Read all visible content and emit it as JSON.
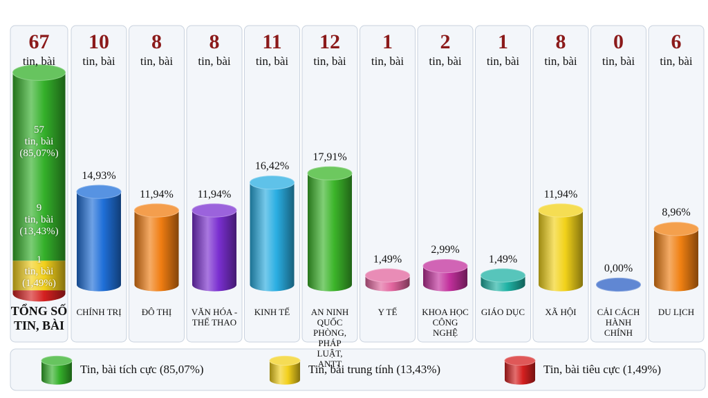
{
  "chart_data": {
    "type": "bar",
    "unit": "tin, bài",
    "total": {
      "label": "TỔNG SỐ TIN, BÀI",
      "value": 67,
      "series": [
        {
          "name": "Tin, bài tích cực (85,07%)",
          "color": "#34b02a",
          "values": [
            57
          ],
          "percents": [
            85.07
          ],
          "percent_labels": [
            "(85,07%)"
          ]
        },
        {
          "name": "Tin, bài trung tính (13,43%)",
          "color": "#f2d01c",
          "values": [
            9
          ],
          "percents": [
            13.43
          ],
          "percent_labels": [
            "(13,43%)"
          ]
        },
        {
          "name": "Tin, bài tiêu cực (1,49%)",
          "color": "#d42020",
          "values": [
            1
          ],
          "percents": [
            1.49
          ],
          "percent_labels": [
            "(1,49%)"
          ]
        }
      ]
    },
    "categories": [
      "CHÍNH TRỊ",
      "ĐÔ THỊ",
      "VĂN HÓA - THỂ THAO",
      "KINH TẾ",
      "AN NINH QUỐC PHÒNG, PHÁP LUẬT, ANTT",
      "Y TẾ",
      "KHOA HỌC CÔNG NGHỆ",
      "GIÁO DỤC",
      "XÃ HỘI",
      "CẢI CÁCH HÀNH CHÍNH",
      "DU LỊCH"
    ],
    "counts": [
      10,
      8,
      8,
      11,
      12,
      1,
      2,
      1,
      8,
      0,
      6
    ],
    "values": [
      14.93,
      11.94,
      11.94,
      16.42,
      17.91,
      1.49,
      2.99,
      1.49,
      11.94,
      0,
      8.96
    ],
    "value_labels": [
      "14,93%",
      "11,94%",
      "11,94%",
      "16,42%",
      "17,91%",
      "1,49%",
      "2,99%",
      "1,49%",
      "11,94%",
      "0,00%",
      "8,96%"
    ],
    "colors": [
      "#1f6fd8",
      "#f07d12",
      "#7a2fd0",
      "#2aaee2",
      "#3cb52a",
      "#e2659e",
      "#c2309c",
      "#1fb2a4",
      "#f2d21a",
      "#2b5fc4",
      "#f08012"
    ]
  }
}
